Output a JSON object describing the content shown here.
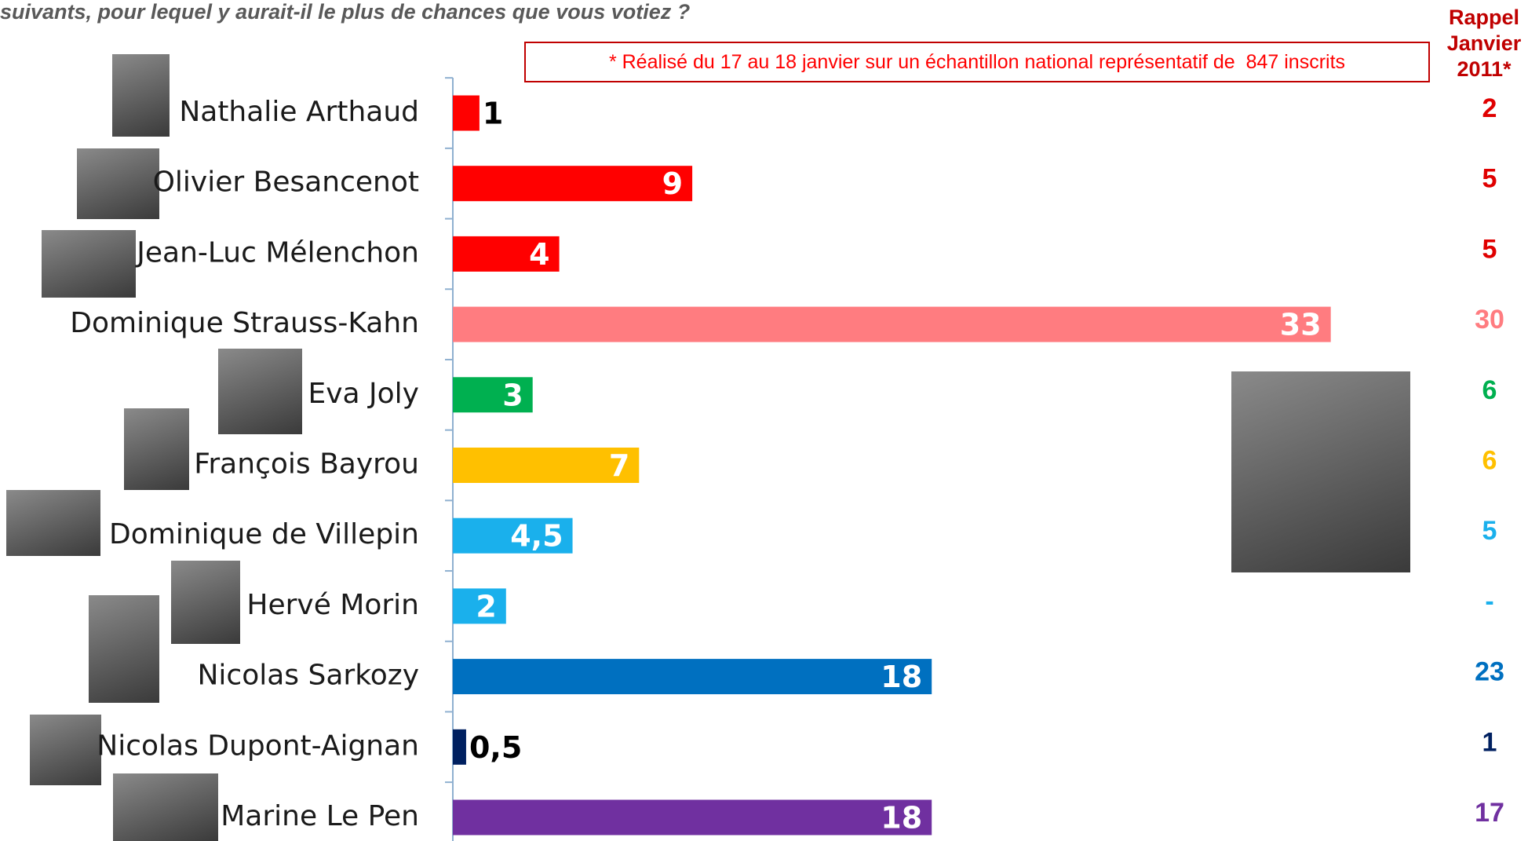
{
  "chart_data": {
    "type": "bar",
    "title": "suivants, pour lequel y aurait-il le plus de chances que vous votiez ?",
    "note": "* Réalisé du 17 au 18 janvier sur un échantillon national représentatif de  847 inscrits",
    "categories": [
      "Nathalie Arthaud",
      "Olivier Besancenot",
      "Jean-Luc Mélenchon",
      "Dominique Strauss-Kahn",
      "Eva Joly",
      "François Bayrou",
      "Dominique de Villepin",
      "Hervé Morin",
      "Nicolas Sarkozy",
      "Nicolas Dupont-Aignan",
      "Marine Le Pen"
    ],
    "values": [
      1,
      9,
      4,
      33,
      3,
      7,
      4.5,
      2,
      18,
      0.5,
      18
    ],
    "value_labels": [
      "1",
      "9",
      "4",
      "33",
      "3",
      "7",
      "4,5",
      "2",
      "18",
      "0,5",
      "18"
    ],
    "colors": [
      "#ff0000",
      "#ff0000",
      "#ff0000",
      "#ff7c80",
      "#00b050",
      "#ffc000",
      "#1ab0ec",
      "#1ab0ec",
      "#0070c0",
      "#002060",
      "#7030a0"
    ],
    "rappel": {
      "title": "Rappel Janvier 2011*",
      "values": [
        2,
        5,
        5,
        30,
        6,
        6,
        5,
        null,
        23,
        1,
        17
      ],
      "value_labels": [
        "2",
        "5",
        "5",
        "30",
        "6",
        "6",
        "5",
        "-",
        "23",
        "1",
        "17"
      ],
      "colors": [
        "#e00000",
        "#e00000",
        "#e00000",
        "#ff7c80",
        "#00b050",
        "#ffc000",
        "#1ab0ec",
        "#1ab0ec",
        "#0070c0",
        "#002060",
        "#7030a0"
      ]
    }
  }
}
